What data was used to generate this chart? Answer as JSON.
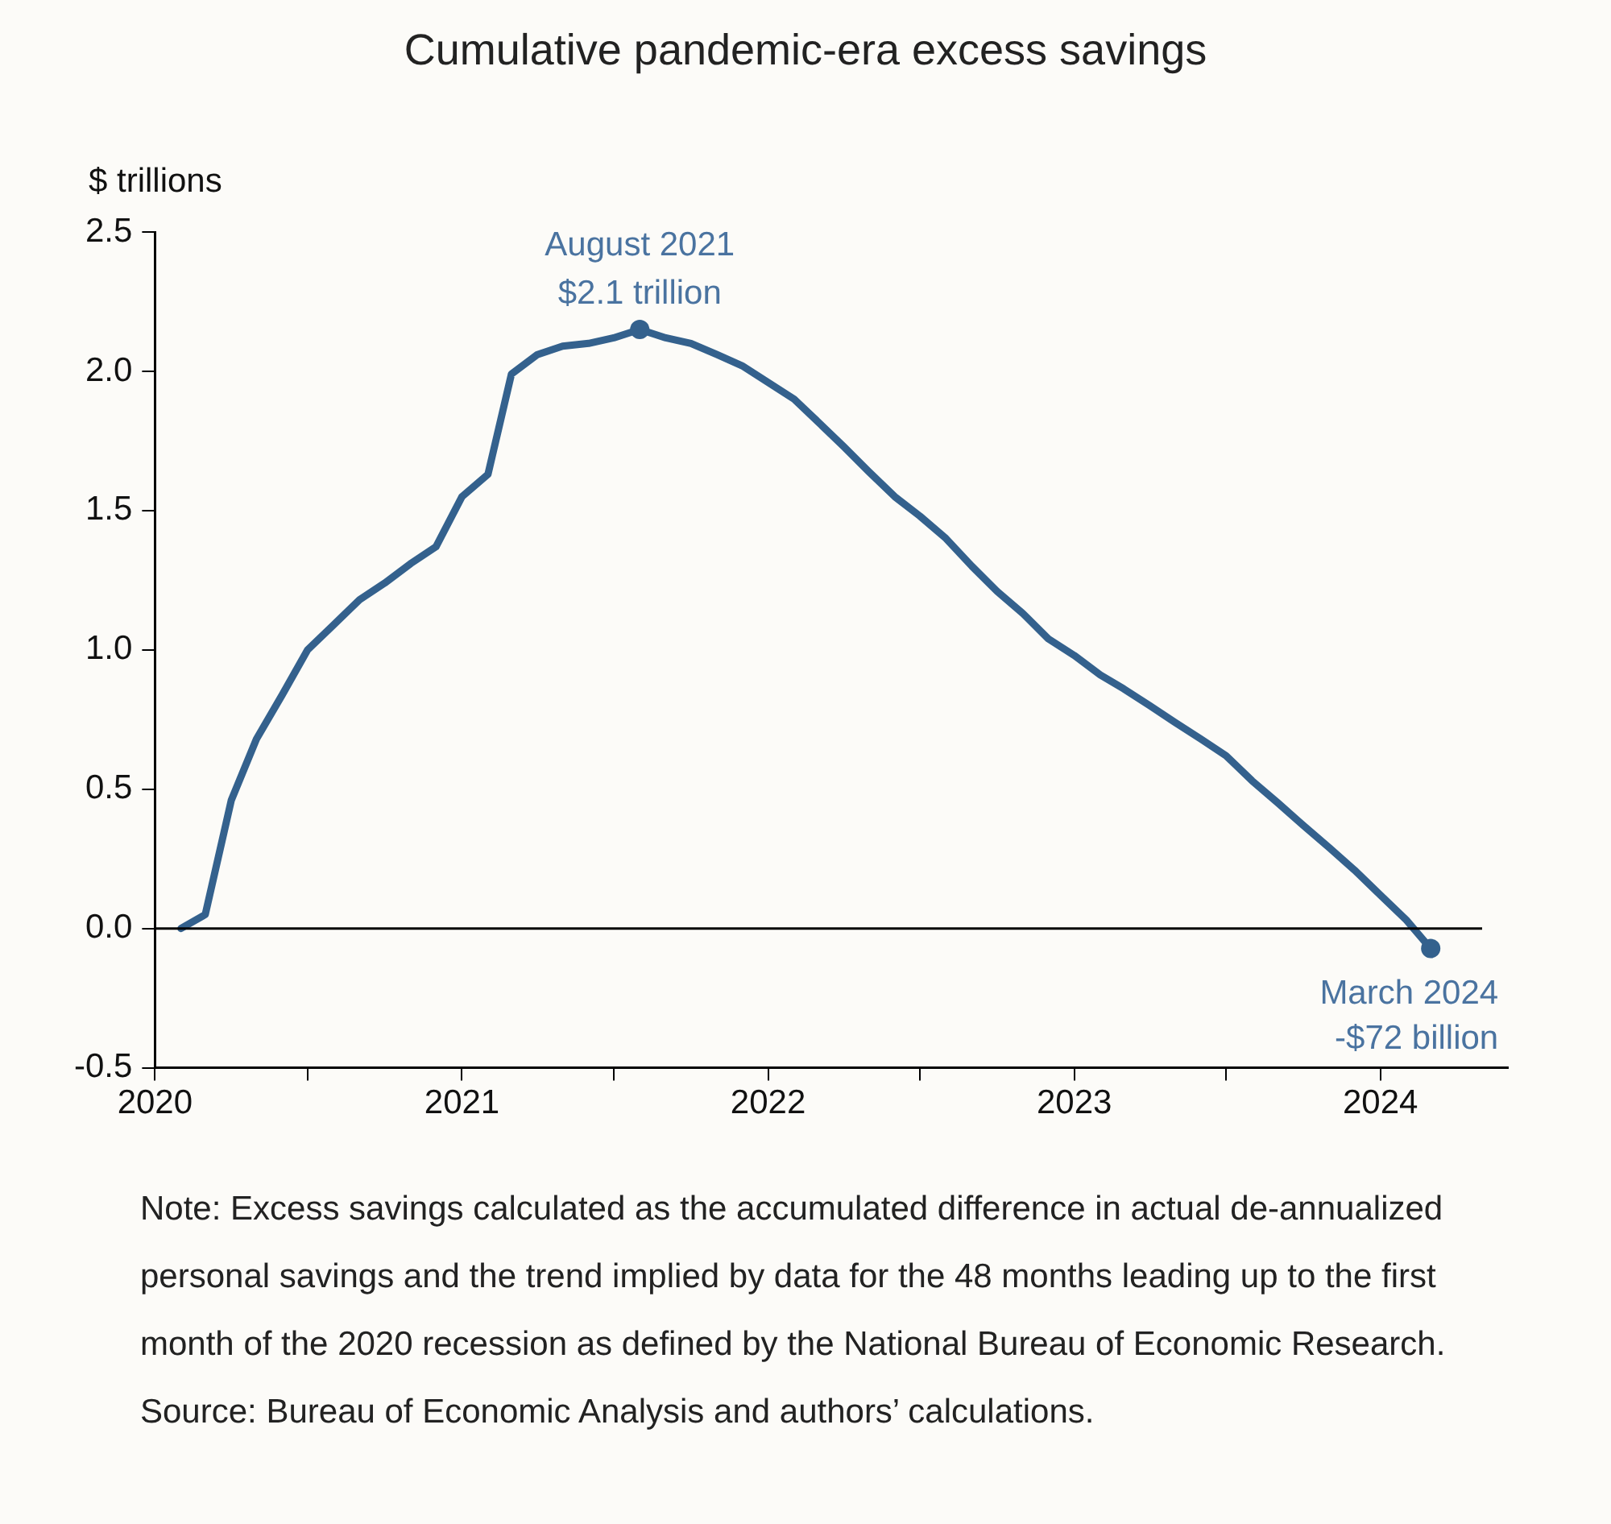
{
  "chart_data": {
    "type": "line",
    "title": "Cumulative pandemic-era excess savings",
    "ylabel": "$ trillions",
    "x": [
      "2020-02",
      "2020-03",
      "2020-04",
      "2020-05",
      "2020-06",
      "2020-07",
      "2020-08",
      "2020-09",
      "2020-10",
      "2020-11",
      "2020-12",
      "2021-01",
      "2021-02",
      "2021-03",
      "2021-04",
      "2021-05",
      "2021-06",
      "2021-07",
      "2021-08",
      "2021-09",
      "2021-10",
      "2021-11",
      "2021-12",
      "2022-01",
      "2022-02",
      "2022-03",
      "2022-04",
      "2022-05",
      "2022-06",
      "2022-07",
      "2022-08",
      "2022-09",
      "2022-10",
      "2022-11",
      "2022-12",
      "2023-01",
      "2023-02",
      "2023-03",
      "2023-04",
      "2023-05",
      "2023-06",
      "2023-07",
      "2023-08",
      "2023-09",
      "2023-10",
      "2023-11",
      "2023-12",
      "2024-01",
      "2024-02",
      "2024-03"
    ],
    "series": [
      {
        "color": "#34618d",
        "values": [
          0,
          0.05,
          0.46,
          0.68,
          0.84,
          1.0,
          1.09,
          1.18,
          1.24,
          1.31,
          1.37,
          1.55,
          1.63,
          1.99,
          2.06,
          2.09,
          2.1,
          2.12,
          2.15,
          2.12,
          2.1,
          2.06,
          2.02,
          1.96,
          1.9,
          1.82,
          1.73,
          1.64,
          1.55,
          1.48,
          1.4,
          1.3,
          1.21,
          1.13,
          1.04,
          0.98,
          0.91,
          0.86,
          0.8,
          0.74,
          0.68,
          0.62,
          0.53,
          0.45,
          0.37,
          0.29,
          0.21,
          0.12,
          0.03,
          -0.072
        ]
      }
    ],
    "xlim": [
      "2020-01",
      "2024-06"
    ],
    "xticks": [
      {
        "value": "2020-01",
        "label": "2020"
      },
      {
        "value": "2020-07",
        "label": null
      },
      {
        "value": "2021-01",
        "label": "2021"
      },
      {
        "value": "2021-07",
        "label": null
      },
      {
        "value": "2022-01",
        "label": "2022"
      },
      {
        "value": "2022-07",
        "label": null
      },
      {
        "value": "2023-01",
        "label": "2023"
      },
      {
        "value": "2023-07",
        "label": null
      },
      {
        "value": "2024-01",
        "label": "2024"
      }
    ],
    "ylim": [
      -0.5,
      2.5
    ],
    "yticks": [
      {
        "value": 2.5,
        "label": "2.5"
      },
      {
        "value": 2.0,
        "label": "2.0"
      },
      {
        "value": 1.5,
        "label": "1.5"
      },
      {
        "value": 1.0,
        "label": "1.0"
      },
      {
        "value": 0.5,
        "label": "0.5"
      },
      {
        "value": 0,
        "label": "0.0"
      },
      {
        "value": -0.5,
        "label": "-0.5"
      }
    ],
    "ref_lines": [
      {
        "axis": "y",
        "value": 0,
        "color": "#000000"
      }
    ],
    "grid": false,
    "legend": false,
    "marker": "none",
    "line_style": "solid",
    "annotations": [
      {
        "text": "August 2021\n$2.1 trillion",
        "x": "2021-08",
        "y": 2.15
      },
      {
        "text": "March 2024\n-$72 billion",
        "x": "2024-03",
        "y": -0.072
      },
      "Note: Excess savings calculated as the accumulated difference in actual de-annualized personal savings and the trend implied by data for the 48 months leading up to the first month of the 2020 recession as defined by the National Bureau of Economic Research.",
      "Source: Bureau of Economic Analysis and authors’ calculations."
    ]
  }
}
